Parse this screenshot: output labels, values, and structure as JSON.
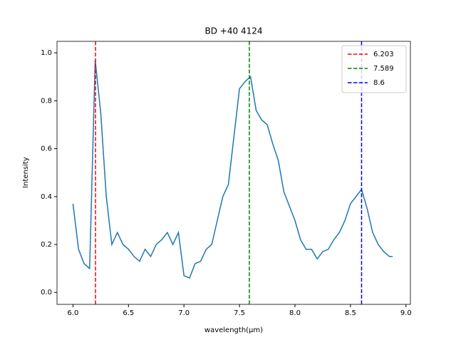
{
  "chart_data": {
    "type": "line",
    "title": "BD +40 4124",
    "xlabel": "wavelength(μm)",
    "ylabel": "Intensity",
    "x": [
      6.0,
      6.05,
      6.1,
      6.15,
      6.2,
      6.25,
      6.3,
      6.35,
      6.4,
      6.45,
      6.5,
      6.55,
      6.6,
      6.65,
      6.7,
      6.75,
      6.8,
      6.85,
      6.9,
      6.95,
      7.0,
      7.05,
      7.1,
      7.15,
      7.2,
      7.25,
      7.3,
      7.35,
      7.4,
      7.45,
      7.5,
      7.55,
      7.6,
      7.65,
      7.7,
      7.75,
      7.8,
      7.85,
      7.9,
      7.95,
      8.0,
      8.05,
      8.1,
      8.15,
      8.2,
      8.25,
      8.3,
      8.35,
      8.4,
      8.45,
      8.5,
      8.55,
      8.6,
      8.65,
      8.7,
      8.75,
      8.8,
      8.85,
      8.88
    ],
    "series": [
      {
        "color": "#1f77b4",
        "values": [
          0.37,
          0.18,
          0.12,
          0.1,
          0.97,
          0.75,
          0.4,
          0.2,
          0.25,
          0.2,
          0.18,
          0.15,
          0.13,
          0.18,
          0.15,
          0.2,
          0.22,
          0.25,
          0.2,
          0.25,
          0.07,
          0.06,
          0.12,
          0.13,
          0.18,
          0.2,
          0.3,
          0.4,
          0.45,
          0.65,
          0.85,
          0.88,
          0.9,
          0.76,
          0.72,
          0.7,
          0.62,
          0.55,
          0.42,
          0.36,
          0.3,
          0.22,
          0.18,
          0.18,
          0.14,
          0.17,
          0.18,
          0.22,
          0.25,
          0.3,
          0.37,
          0.4,
          0.43,
          0.35,
          0.25,
          0.2,
          0.17,
          0.15,
          0.15
        ]
      }
    ],
    "vlines": [
      {
        "x": 6.203,
        "color": "#ff0000"
      },
      {
        "x": 7.589,
        "color": "#008000"
      },
      {
        "x": 8.6,
        "color": "#0000ff"
      }
    ],
    "xlim": [
      5.856,
      9.04
    ],
    "ylim": [
      -0.05,
      1.048
    ],
    "xticks": [
      {
        "value": 6,
        "label": "6.0"
      },
      6.5,
      {
        "value": 7,
        "label": "7.0"
      },
      7.5,
      {
        "value": 8,
        "label": "8.0"
      },
      8.5,
      {
        "value": 9,
        "label": "9.0"
      }
    ],
    "yticks": [
      {
        "value": 0,
        "label": "0.0"
      },
      0.2,
      0.4,
      0.6,
      0.8,
      {
        "value": 1,
        "label": "1.0"
      }
    ],
    "legend": "upper right"
  }
}
